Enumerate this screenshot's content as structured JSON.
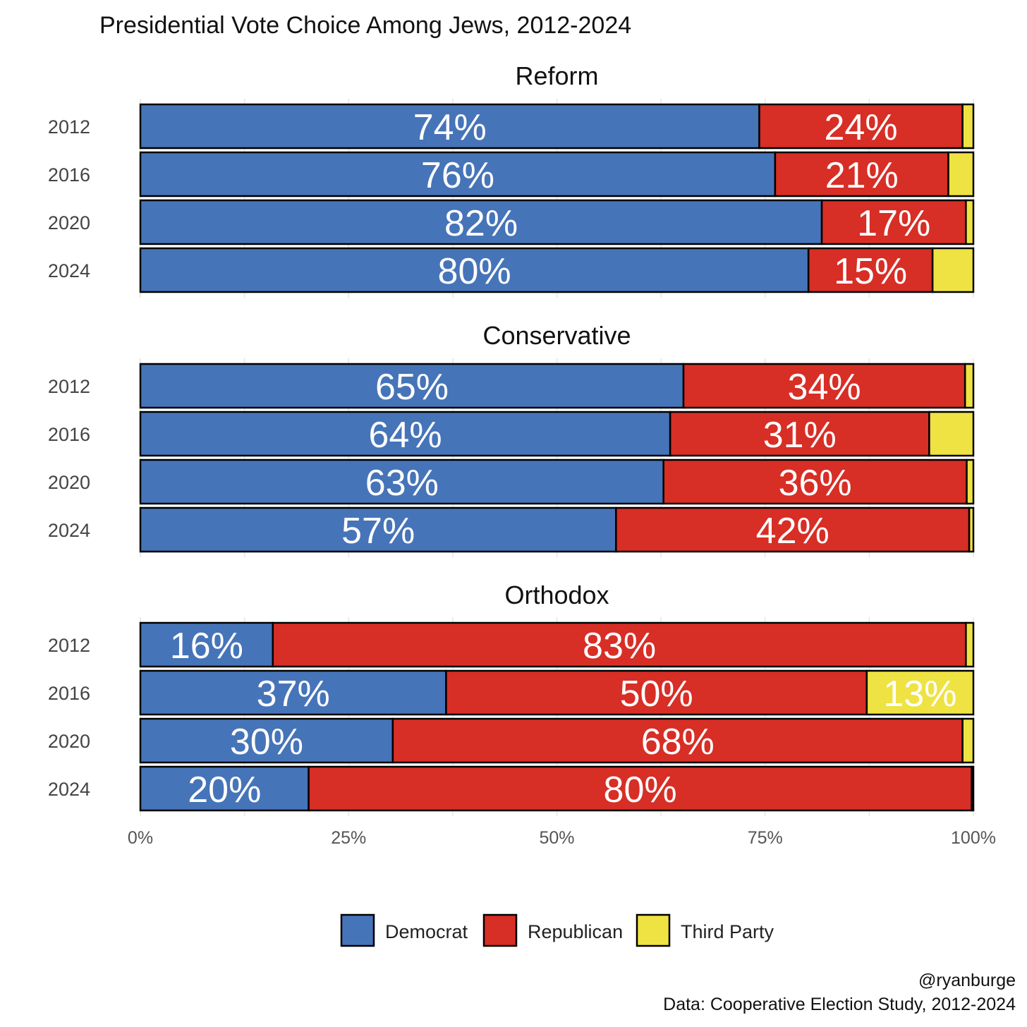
{
  "chart_data": {
    "type": "bar",
    "orientation": "horizontal-stacked",
    "title": "Presidential Vote Choice Among Jews, 2012-2024",
    "xlim": [
      0,
      100
    ],
    "x_ticks": [
      "0%",
      "25%",
      "50%",
      "75%",
      "100%"
    ],
    "categories": [
      "2012",
      "2016",
      "2020",
      "2024"
    ],
    "series_names": [
      "Democrat",
      "Republican",
      "Third Party"
    ],
    "colors": {
      "Democrat": "#4674B8",
      "Republican": "#D72E26",
      "Third Party": "#EFE243"
    },
    "legend_position": "bottom",
    "grid": true,
    "facets": [
      {
        "name": "Reform",
        "rows": [
          {
            "year": "2012",
            "values": [
              74.3,
              24.4,
              1.3
            ],
            "labels": [
              "74%",
              "24%",
              ""
            ]
          },
          {
            "year": "2016",
            "values": [
              76.2,
              20.8,
              3.0
            ],
            "labels": [
              "76%",
              "21%",
              ""
            ]
          },
          {
            "year": "2020",
            "values": [
              81.8,
              17.3,
              0.9
            ],
            "labels": [
              "82%",
              "17%",
              ""
            ]
          },
          {
            "year": "2024",
            "values": [
              80.2,
              14.9,
              4.9
            ],
            "labels": [
              "80%",
              "15%",
              ""
            ]
          }
        ]
      },
      {
        "name": "Conservative",
        "rows": [
          {
            "year": "2012",
            "values": [
              65.2,
              33.8,
              1.0
            ],
            "labels": [
              "65%",
              "34%",
              ""
            ]
          },
          {
            "year": "2016",
            "values": [
              63.6,
              31.1,
              5.3
            ],
            "labels": [
              "64%",
              "31%",
              ""
            ]
          },
          {
            "year": "2020",
            "values": [
              62.8,
              36.4,
              0.8
            ],
            "labels": [
              "63%",
              "36%",
              ""
            ]
          },
          {
            "year": "2024",
            "values": [
              57.1,
              42.4,
              0.5
            ],
            "labels": [
              "57%",
              "42%",
              ""
            ]
          }
        ]
      },
      {
        "name": "Orthodox",
        "rows": [
          {
            "year": "2012",
            "values": [
              15.9,
              83.2,
              0.9
            ],
            "labels": [
              "16%",
              "83%",
              ""
            ]
          },
          {
            "year": "2016",
            "values": [
              36.7,
              50.5,
              12.8
            ],
            "labels": [
              "37%",
              "50%",
              "13%"
            ]
          },
          {
            "year": "2020",
            "values": [
              30.3,
              68.4,
              1.3
            ],
            "labels": [
              "30%",
              "68%",
              ""
            ]
          },
          {
            "year": "2024",
            "values": [
              20.2,
              79.6,
              0.2
            ],
            "labels": [
              "20%",
              "80%",
              ""
            ]
          }
        ]
      }
    ]
  },
  "caption": {
    "handle": "@ryanburge",
    "source": "Data: Cooperative Election Study, 2012-2024"
  }
}
